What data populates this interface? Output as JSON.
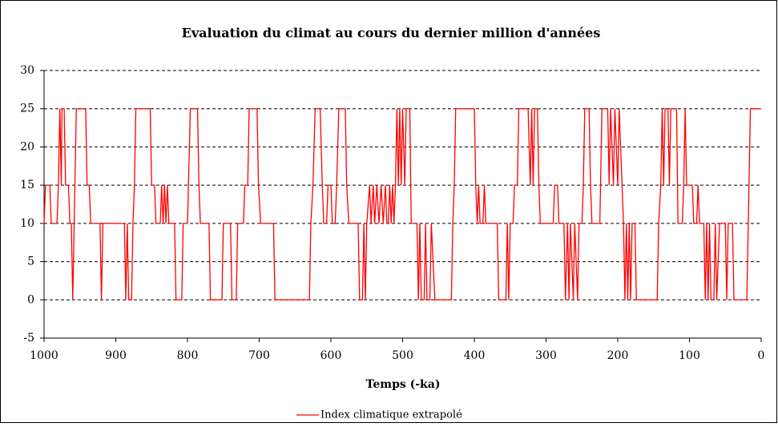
{
  "chart_data": {
    "type": "line",
    "title": "Evaluation du climat au cours du dernier million d'années",
    "x_label": "Temps (-ka)",
    "xlim": [
      1000,
      0
    ],
    "xticks": [
      1000,
      900,
      800,
      700,
      600,
      500,
      400,
      300,
      200,
      100,
      0
    ],
    "ylim": [
      -5,
      30
    ],
    "yticks": [
      -5,
      0,
      5,
      10,
      15,
      20,
      25,
      30
    ],
    "grid": true,
    "legend": "bottom",
    "series": [
      {
        "name": "Index climatique extrapolé",
        "color": "#ff0000",
        "x": [
          1000,
          998,
          992,
          990,
          982,
          980,
          978,
          976,
          975,
          972,
          970,
          966,
          964,
          962,
          960,
          958,
          955,
          942,
          940,
          937,
          935,
          922,
          920,
          918,
          888,
          886,
          884,
          882,
          878,
          876,
          874,
          872,
          852,
          850,
          846,
          844,
          838,
          836,
          834,
          832,
          830,
          828,
          826,
          818,
          816,
          808,
          806,
          800,
          796,
          786,
          784,
          782,
          770,
          768,
          752,
          750,
          740,
          738,
          732,
          730,
          722,
          720,
          716,
          714,
          703,
          701,
          698,
          680,
          678,
          630,
          628,
          625,
          622,
          615,
          612,
          610,
          606,
          604,
          600,
          598,
          594,
          592,
          589,
          580,
          578,
          575,
          562,
          560,
          556,
          554,
          552,
          550,
          546,
          544,
          541,
          539,
          536,
          533,
          530,
          527,
          524,
          522,
          520,
          518,
          516,
          514,
          512,
          510,
          508,
          506,
          504,
          502,
          500,
          497,
          495,
          490,
          488,
          480,
          478,
          476,
          474,
          470,
          468,
          466,
          462,
          460,
          455,
          432,
          430,
          428,
          426,
          400,
          398,
          396,
          394,
          392,
          388,
          386,
          384,
          368,
          366,
          356,
          354,
          352,
          350,
          346,
          344,
          340,
          338,
          325,
          322,
          320,
          318,
          316,
          312,
          310,
          308,
          290,
          288,
          284,
          282,
          275,
          273,
          270,
          268,
          266,
          262,
          260,
          256,
          254,
          250,
          248,
          246,
          240,
          238,
          236,
          225,
          222,
          214,
          212,
          210,
          206,
          204,
          200,
          198,
          194,
          192,
          190,
          188,
          186,
          184,
          182,
          180,
          176,
          174,
          145,
          143,
          140,
          138,
          136,
          134,
          130,
          128,
          126,
          118,
          116,
          110,
          108,
          106,
          104,
          96,
          94,
          90,
          88,
          86,
          80,
          78,
          76,
          74,
          72,
          70,
          66,
          64,
          62,
          58,
          50,
          48,
          46,
          40,
          38,
          20,
          18,
          15,
          0
        ],
        "values": [
          10,
          15,
          15,
          10,
          10,
          15,
          25,
          15,
          25,
          25,
          15,
          15,
          10,
          10,
          0,
          10,
          25,
          25,
          15,
          15,
          10,
          10,
          0,
          10,
          10,
          0,
          10,
          0,
          0,
          10,
          15,
          25,
          25,
          15,
          15,
          10,
          10,
          15,
          10,
          15,
          10,
          15,
          10,
          10,
          0,
          0,
          10,
          10,
          25,
          25,
          15,
          10,
          10,
          0,
          0,
          10,
          10,
          0,
          0,
          10,
          10,
          15,
          15,
          25,
          25,
          15,
          10,
          10,
          0,
          0,
          10,
          15,
          25,
          25,
          15,
          10,
          10,
          15,
          15,
          10,
          10,
          15,
          25,
          25,
          15,
          10,
          10,
          0,
          0,
          10,
          0,
          10,
          15,
          10,
          15,
          10,
          15,
          10,
          15,
          10,
          15,
          10,
          10,
          15,
          10,
          15,
          10,
          15,
          25,
          15,
          25,
          15,
          25,
          15,
          25,
          25,
          10,
          10,
          0,
          10,
          0,
          0,
          10,
          0,
          0,
          10,
          0,
          0,
          10,
          15,
          25,
          25,
          15,
          10,
          15,
          10,
          10,
          15,
          10,
          10,
          0,
          0,
          10,
          0,
          10,
          10,
          15,
          15,
          25,
          25,
          15,
          25,
          15,
          25,
          25,
          15,
          10,
          10,
          15,
          15,
          10,
          10,
          0,
          10,
          0,
          10,
          0,
          10,
          0,
          10,
          10,
          15,
          25,
          25,
          15,
          10,
          10,
          25,
          25,
          15,
          25,
          15,
          25,
          15,
          25,
          15,
          10,
          0,
          10,
          0,
          10,
          0,
          10,
          10,
          0,
          0,
          10,
          15,
          25,
          15,
          25,
          25,
          15,
          25,
          25,
          10,
          10,
          15,
          25,
          15,
          15,
          10,
          10,
          15,
          10,
          10,
          0,
          10,
          0,
          10,
          0,
          0,
          10,
          0,
          10,
          10,
          0,
          10,
          10,
          0,
          0,
          10,
          25,
          25
        ]
      }
    ]
  }
}
